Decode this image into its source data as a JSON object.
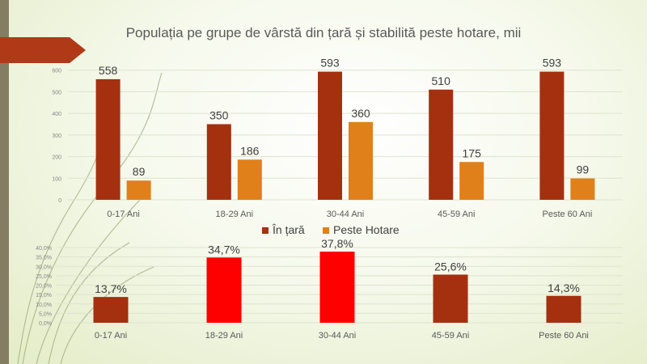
{
  "title": "Populația pe grupe de vârstă din țară și stabilită peste hotare, mii",
  "colors": {
    "in_tara": "#a4300f",
    "peste_hotare": "#e0801a",
    "highlight": "#ff0000",
    "accent": "#b03a18"
  },
  "chart_data": [
    {
      "type": "bar",
      "title": "Populația pe grupe de vârstă din țară și stabilită peste hotare, mii",
      "categories": [
        "0-17 Ani",
        "18-29 Ani",
        "30-44 Ani",
        "45-59 Ani",
        "Peste 60 Ani"
      ],
      "series": [
        {
          "name": "În țară",
          "values": [
            558,
            350,
            593,
            510,
            593
          ],
          "labels": [
            "558",
            "350",
            "593",
            "510",
            "593"
          ]
        },
        {
          "name": "Peste Hotare",
          "values": [
            89,
            186,
            360,
            175,
            99
          ],
          "labels": [
            "89",
            "186",
            "360",
            "175",
            "99"
          ]
        }
      ],
      "yticks": [
        "0",
        "100",
        "200",
        "300",
        "400",
        "500",
        "600"
      ],
      "ylim": [
        0,
        700
      ],
      "legend_position": "bottom",
      "grid": true
    },
    {
      "type": "bar",
      "categories": [
        "0-17 Ani",
        "18-29 Ani",
        "30-44 Ani",
        "45-59 Ani",
        "Peste 60 Ani"
      ],
      "series": [
        {
          "values": [
            13.7,
            34.7,
            37.8,
            25.6,
            14.3
          ],
          "labels": [
            "13,7%",
            "34,7%",
            "37,8%",
            "25,6%",
            "14,3%"
          ],
          "highlighted": [
            false,
            true,
            true,
            false,
            false
          ]
        }
      ],
      "yticks": [
        "0,0%",
        "5,0%",
        "10,0%",
        "15,0%",
        "20,0%",
        "25,0%",
        "30,0%",
        "35,0%",
        "40,0%"
      ],
      "ylim": [
        0,
        40
      ],
      "grid": true
    }
  ]
}
